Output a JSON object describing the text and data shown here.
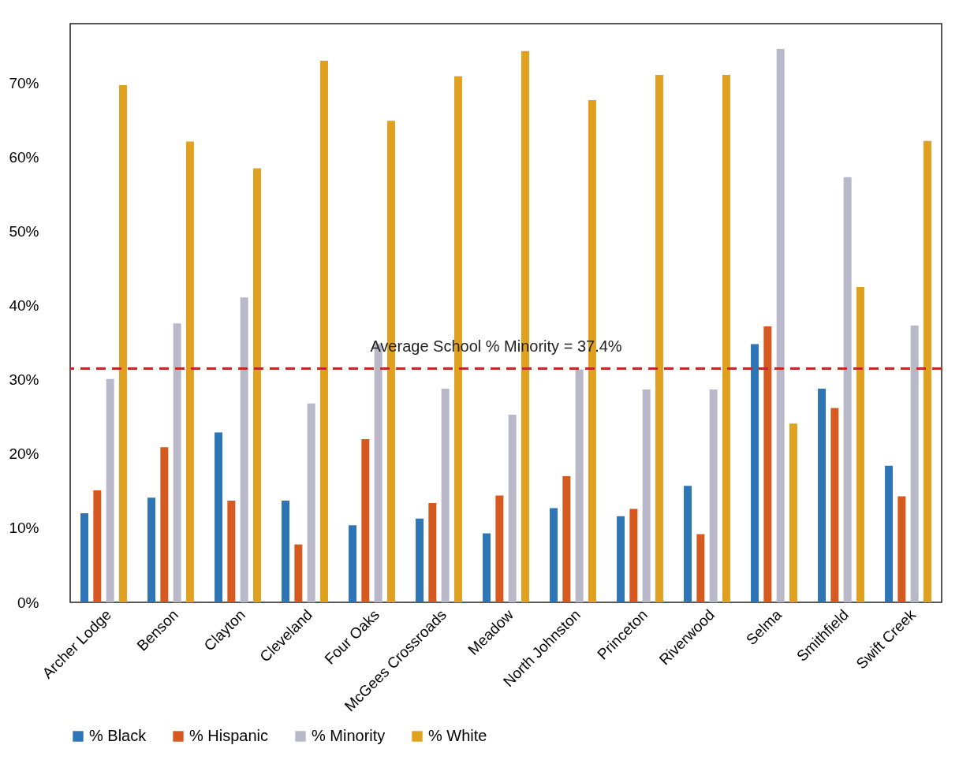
{
  "chart_data": {
    "type": "bar",
    "categories": [
      "Archer Lodge",
      "Benson",
      "Clayton",
      "Cleveland",
      "Four Oaks",
      "McGees Crossroads",
      "Meadow",
      "North Johnston",
      "Princeton",
      "Riverwood",
      "Selma",
      "Smithfield",
      "Swift Creek"
    ],
    "series": [
      {
        "name": "% Black",
        "color": "#2e75b6",
        "values": [
          12.0,
          14.1,
          22.9,
          13.7,
          10.4,
          11.3,
          9.3,
          12.7,
          11.6,
          15.7,
          34.8,
          28.8,
          18.4
        ]
      },
      {
        "name": "% Hispanic",
        "color": "#d65a1f",
        "values": [
          15.1,
          20.9,
          13.7,
          7.8,
          22.0,
          13.4,
          14.4,
          17.0,
          12.6,
          9.2,
          37.2,
          26.2,
          14.3
        ]
      },
      {
        "name": "% Minority",
        "color": "#b8b8c8",
        "values": [
          30.1,
          37.6,
          41.1,
          26.8,
          34.8,
          28.8,
          25.3,
          31.4,
          28.7,
          28.7,
          74.6,
          57.3,
          37.3
        ]
      },
      {
        "name": "% White",
        "color": "#e0a020",
        "values": [
          69.7,
          62.1,
          58.5,
          73.0,
          64.9,
          70.9,
          74.3,
          67.7,
          71.1,
          71.1,
          24.1,
          42.5,
          62.2
        ]
      }
    ],
    "ylim": [
      0,
      78
    ],
    "yticks": [
      {
        "value": 0,
        "label": "0%"
      },
      {
        "value": 10,
        "label": "10%"
      },
      {
        "value": 20,
        "label": "20%"
      },
      {
        "value": 30,
        "label": "30%"
      },
      {
        "value": 40,
        "label": "40%"
      },
      {
        "value": 50,
        "label": "50%"
      },
      {
        "value": 60,
        "label": "60%"
      },
      {
        "value": 70,
        "label": "70%"
      }
    ],
    "ref_lines": [
      {
        "axis": "y",
        "value": 31.5,
        "color": "#c0282a",
        "line_style": "dashed"
      }
    ],
    "annotations": [
      "Average School % Minority = 37.4%"
    ],
    "grid": false,
    "legend": "bottom"
  }
}
